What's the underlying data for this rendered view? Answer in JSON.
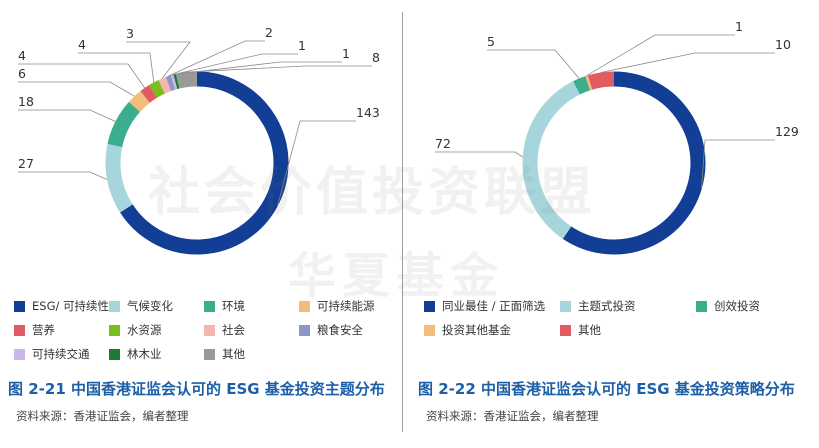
{
  "chart_data": [
    {
      "type": "donut",
      "slices": [
        {
          "label": "ESG/ 可持续性",
          "value": 143,
          "color": "#123e96"
        },
        {
          "label": "气候变化",
          "value": 27,
          "color": "#a6d6dc"
        },
        {
          "label": "环境",
          "value": 18,
          "color": "#3aae8e"
        },
        {
          "label": "可持续能源",
          "value": 6,
          "color": "#f2bd7a"
        },
        {
          "label": "营养",
          "value": 4,
          "color": "#e35b62"
        },
        {
          "label": "水资源",
          "value": 4,
          "color": "#7abd1e"
        },
        {
          "label": "社会",
          "value": 3,
          "color": "#f4b7ac"
        },
        {
          "label": "粮食安全",
          "value": 2,
          "color": "#8e96c8"
        },
        {
          "label": "可持续交通",
          "value": 1,
          "color": "#c8b8e8"
        },
        {
          "label": "林木业",
          "value": 1,
          "color": "#1e7a35"
        },
        {
          "label": "其他",
          "value": 8,
          "color": "#9a9a9a"
        }
      ],
      "caption": "图 2-21   中国香港证监会认可的 ESG 基金投资主题分布",
      "source": "资料来源：香港证监会，编者整理"
    },
    {
      "type": "donut",
      "slices": [
        {
          "label": "同业最佳 / 正面筛选",
          "value": 129,
          "color": "#123e96"
        },
        {
          "label": "主题式投资",
          "value": 72,
          "color": "#a6d6dc"
        },
        {
          "label": "创效投资",
          "value": 5,
          "color": "#3aae8e"
        },
        {
          "label": "投资其他基金",
          "value": 1,
          "color": "#f2bd7a"
        },
        {
          "label": "其他",
          "value": 10,
          "color": "#e35b62"
        }
      ],
      "caption": "图 2-22   中国香港证监会认可的 ESG 基金投资策略分布",
      "source": "资料来源：香港证监会，编者整理"
    }
  ],
  "watermark": {
    "line1": "社会价值投资联盟",
    "line2": "华夏基金"
  }
}
